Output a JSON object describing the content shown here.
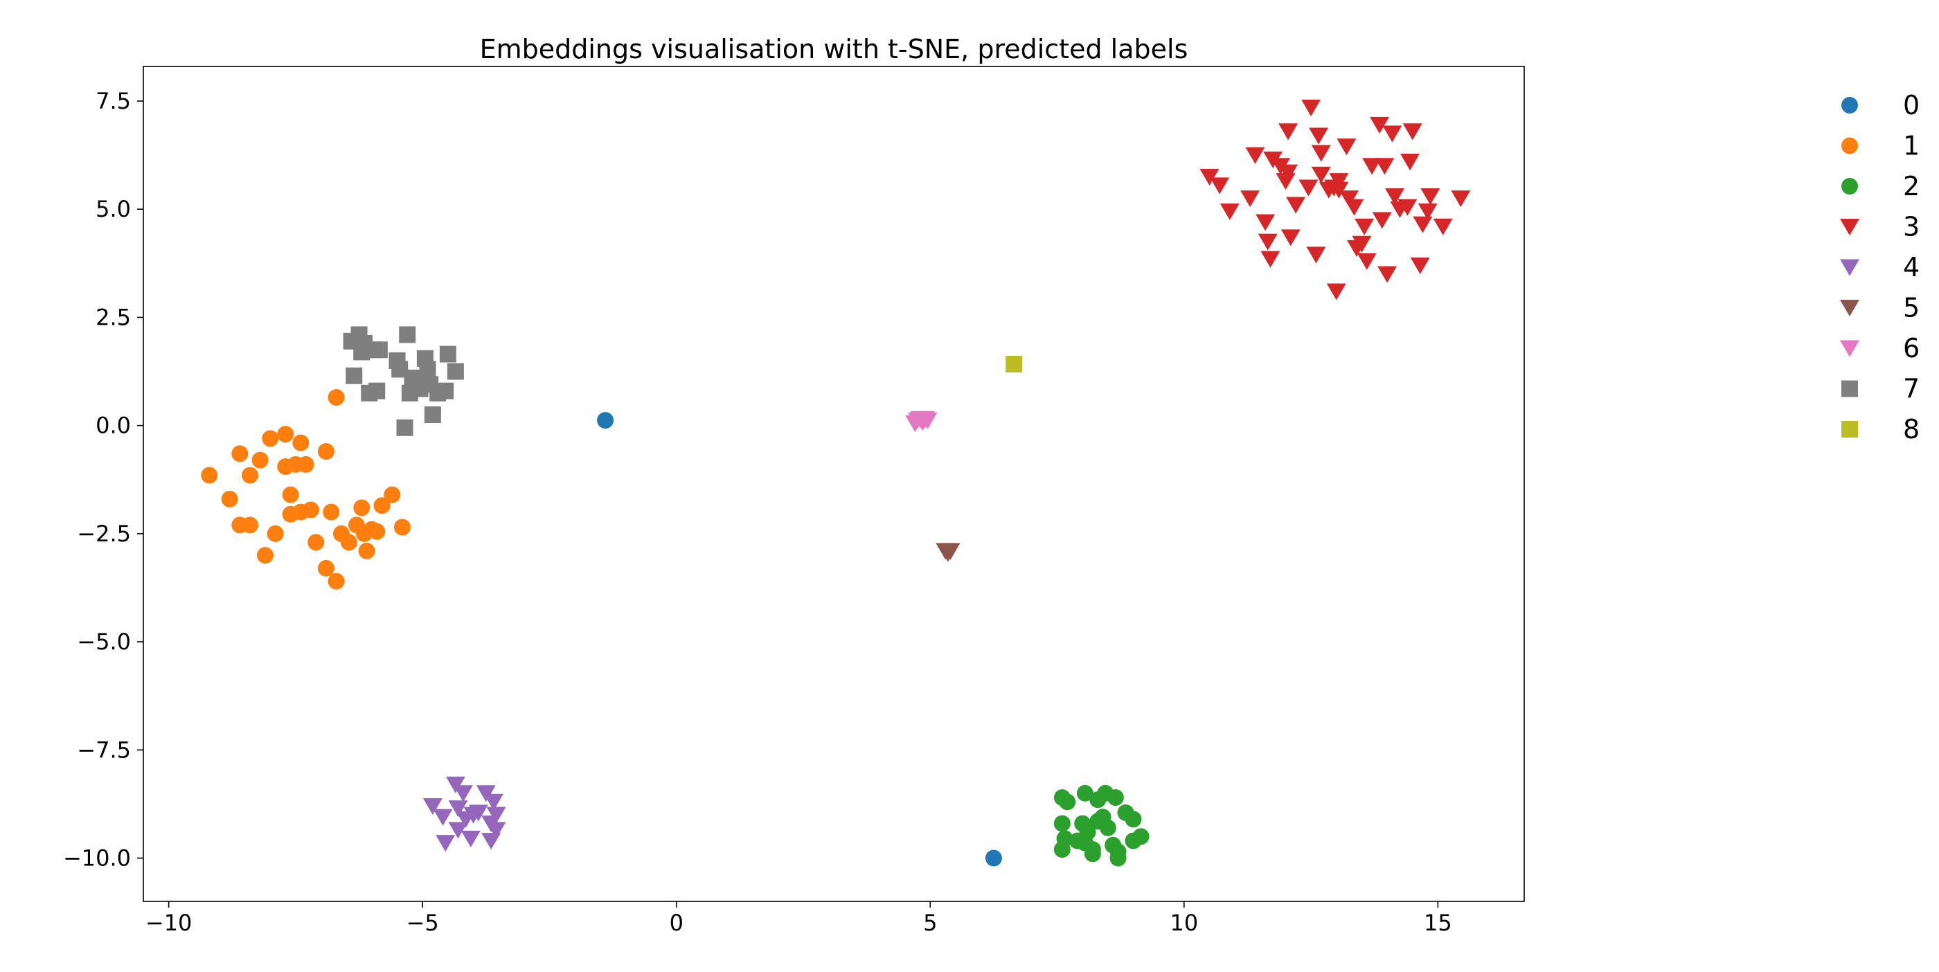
{
  "chart_data": {
    "type": "scatter",
    "title": "Embeddings visualisation with t-SNE, predicted labels",
    "xlabel": "",
    "ylabel": "",
    "xlim": [
      -10.5,
      16.7
    ],
    "ylim": [
      -11.0,
      8.3
    ],
    "x_ticks": [
      -10,
      -5,
      0,
      5,
      10,
      15
    ],
    "x_tick_labels": [
      "−10",
      "−5",
      "0",
      "5",
      "10",
      "15"
    ],
    "y_ticks": [
      -10,
      -7.5,
      -5,
      -2.5,
      0,
      2.5,
      5,
      7.5
    ],
    "y_tick_labels": [
      "−10.0",
      "−7.5",
      "−5.0",
      "−2.5",
      "0.0",
      "2.5",
      "5.0",
      "7.5"
    ],
    "grid": false,
    "legend_position": "outside-right",
    "series": [
      {
        "name": "0",
        "color": "#1f77b4",
        "marker": "circle",
        "points": [
          [
            -1.4,
            0.12
          ],
          [
            6.25,
            -10.0
          ]
        ]
      },
      {
        "name": "1",
        "color": "#ff7f0e",
        "marker": "circle",
        "points": [
          [
            -6.7,
            0.65
          ],
          [
            -9.2,
            -1.15
          ],
          [
            -8.8,
            -1.7
          ],
          [
            -8.6,
            -2.3
          ],
          [
            -8.4,
            -2.3
          ],
          [
            -8.4,
            -1.15
          ],
          [
            -8.2,
            -0.8
          ],
          [
            -8.1,
            -3.0
          ],
          [
            -8.0,
            -0.3
          ],
          [
            -7.9,
            -2.5
          ],
          [
            -7.7,
            -0.95
          ],
          [
            -7.7,
            -0.2
          ],
          [
            -7.6,
            -1.6
          ],
          [
            -7.6,
            -2.05
          ],
          [
            -7.5,
            -0.9
          ],
          [
            -7.4,
            -2.0
          ],
          [
            -7.4,
            -0.4
          ],
          [
            -7.3,
            -0.9
          ],
          [
            -7.2,
            -1.95
          ],
          [
            -7.1,
            -2.7
          ],
          [
            -6.9,
            -0.6
          ],
          [
            -6.8,
            -2.0
          ],
          [
            -6.9,
            -3.3
          ],
          [
            -6.7,
            -3.6
          ],
          [
            -6.6,
            -2.5
          ],
          [
            -6.45,
            -2.7
          ],
          [
            -6.3,
            -2.3
          ],
          [
            -6.2,
            -1.9
          ],
          [
            -6.1,
            -2.9
          ],
          [
            -6.0,
            -2.4
          ],
          [
            -5.9,
            -2.45
          ],
          [
            -5.8,
            -1.85
          ],
          [
            -5.6,
            -1.6
          ],
          [
            -5.4,
            -2.35
          ],
          [
            -8.6,
            -0.65
          ],
          [
            -6.15,
            -2.5
          ]
        ]
      },
      {
        "name": "2",
        "color": "#2ca02c",
        "marker": "circle",
        "points": [
          [
            7.6,
            -8.6
          ],
          [
            7.7,
            -8.7
          ],
          [
            7.6,
            -9.2
          ],
          [
            7.65,
            -9.55
          ],
          [
            7.6,
            -9.8
          ],
          [
            7.9,
            -9.6
          ],
          [
            8.0,
            -9.2
          ],
          [
            8.05,
            -8.5
          ],
          [
            8.05,
            -9.65
          ],
          [
            8.1,
            -9.4
          ],
          [
            8.2,
            -9.8
          ],
          [
            8.3,
            -9.15
          ],
          [
            8.3,
            -8.65
          ],
          [
            8.4,
            -9.05
          ],
          [
            8.45,
            -8.5
          ],
          [
            8.5,
            -9.3
          ],
          [
            8.6,
            -9.7
          ],
          [
            8.7,
            -9.85
          ],
          [
            8.7,
            -10.0
          ],
          [
            8.65,
            -8.6
          ],
          [
            8.85,
            -8.95
          ],
          [
            9.0,
            -9.1
          ],
          [
            9.0,
            -9.6
          ],
          [
            9.15,
            -9.5
          ],
          [
            8.2,
            -9.9
          ]
        ]
      },
      {
        "name": "3",
        "color": "#d62728",
        "marker": "triangle-down",
        "points": [
          [
            10.5,
            5.75
          ],
          [
            10.7,
            5.55
          ],
          [
            10.9,
            4.95
          ],
          [
            11.3,
            5.25
          ],
          [
            11.4,
            6.25
          ],
          [
            11.6,
            4.7
          ],
          [
            11.65,
            4.25
          ],
          [
            11.7,
            3.85
          ],
          [
            11.75,
            6.15
          ],
          [
            11.9,
            6.0
          ],
          [
            12.0,
            5.65
          ],
          [
            12.05,
            5.85
          ],
          [
            12.05,
            6.8
          ],
          [
            12.1,
            4.35
          ],
          [
            12.2,
            5.1
          ],
          [
            12.45,
            5.5
          ],
          [
            12.5,
            7.35
          ],
          [
            12.6,
            3.95
          ],
          [
            12.65,
            6.7
          ],
          [
            12.7,
            5.8
          ],
          [
            12.7,
            6.3
          ],
          [
            12.85,
            5.45
          ],
          [
            12.95,
            5.5
          ],
          [
            13.0,
            3.1
          ],
          [
            13.05,
            5.45
          ],
          [
            13.05,
            5.65
          ],
          [
            13.2,
            6.45
          ],
          [
            13.25,
            5.25
          ],
          [
            13.35,
            5.05
          ],
          [
            13.4,
            4.1
          ],
          [
            13.5,
            4.2
          ],
          [
            13.55,
            4.6
          ],
          [
            13.6,
            3.8
          ],
          [
            13.7,
            6.0
          ],
          [
            13.85,
            6.95
          ],
          [
            13.9,
            4.75
          ],
          [
            13.95,
            6.0
          ],
          [
            14.0,
            3.5
          ],
          [
            14.1,
            6.75
          ],
          [
            14.15,
            5.3
          ],
          [
            14.25,
            5.0
          ],
          [
            14.4,
            5.05
          ],
          [
            14.45,
            6.1
          ],
          [
            14.5,
            6.8
          ],
          [
            14.65,
            3.7
          ],
          [
            14.7,
            4.65
          ],
          [
            14.8,
            4.95
          ],
          [
            14.85,
            5.3
          ],
          [
            15.1,
            4.6
          ],
          [
            15.45,
            5.25
          ]
        ]
      },
      {
        "name": "4",
        "color": "#9467bd",
        "marker": "triangle-down",
        "points": [
          [
            -4.8,
            -8.8
          ],
          [
            -4.6,
            -9.05
          ],
          [
            -4.55,
            -9.65
          ],
          [
            -4.35,
            -8.3
          ],
          [
            -4.3,
            -8.85
          ],
          [
            -4.3,
            -9.35
          ],
          [
            -4.2,
            -8.5
          ],
          [
            -4.15,
            -9.1
          ],
          [
            -4.05,
            -9.55
          ],
          [
            -4.0,
            -9.0
          ],
          [
            -3.9,
            -8.95
          ],
          [
            -3.75,
            -8.5
          ],
          [
            -3.65,
            -9.2
          ],
          [
            -3.65,
            -9.6
          ],
          [
            -3.6,
            -8.7
          ],
          [
            -3.55,
            -9.0
          ],
          [
            -3.55,
            -9.35
          ]
        ]
      },
      {
        "name": "5",
        "color": "#8c564b",
        "marker": "triangle-down",
        "points": [
          [
            5.35,
            -2.95
          ],
          [
            5.3,
            -2.9
          ],
          [
            5.4,
            -2.9
          ]
        ]
      },
      {
        "name": "6",
        "color": "#e377c2",
        "marker": "triangle-down",
        "points": [
          [
            4.7,
            0.05
          ],
          [
            4.75,
            0.12
          ],
          [
            4.8,
            0.15
          ],
          [
            4.85,
            0.08
          ],
          [
            4.9,
            0.15
          ],
          [
            4.95,
            0.12
          ]
        ]
      },
      {
        "name": "7",
        "color": "#7f7f7f",
        "marker": "square",
        "points": [
          [
            -6.35,
            1.15
          ],
          [
            -6.4,
            1.95
          ],
          [
            -6.25,
            2.1
          ],
          [
            -6.2,
            1.7
          ],
          [
            -6.15,
            1.9
          ],
          [
            -6.05,
            0.75
          ],
          [
            -5.9,
            0.8
          ],
          [
            -5.95,
            1.75
          ],
          [
            -5.85,
            1.75
          ],
          [
            -5.5,
            1.5
          ],
          [
            -5.45,
            1.3
          ],
          [
            -5.35,
            -0.05
          ],
          [
            -5.3,
            2.1
          ],
          [
            -5.25,
            0.75
          ],
          [
            -5.2,
            0.95
          ],
          [
            -5.15,
            1.1
          ],
          [
            -5.05,
            0.85
          ],
          [
            -4.95,
            1.55
          ],
          [
            -4.9,
            1.3
          ],
          [
            -4.85,
            0.95
          ],
          [
            -4.8,
            0.25
          ],
          [
            -4.7,
            0.75
          ],
          [
            -4.55,
            0.8
          ],
          [
            -4.5,
            1.65
          ],
          [
            -4.35,
            1.25
          ]
        ]
      },
      {
        "name": "8",
        "color": "#bcbd22",
        "marker": "square",
        "points": [
          [
            6.65,
            1.42
          ]
        ]
      }
    ]
  }
}
